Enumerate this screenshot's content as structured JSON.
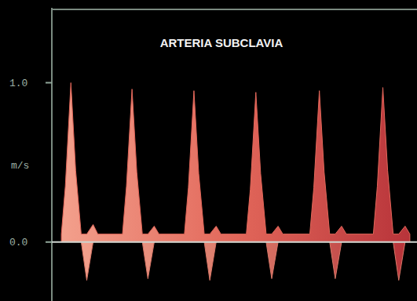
{
  "chart_data": {
    "type": "area",
    "title": "ARTERIA SUBCLAVIA",
    "y_label": "m/s",
    "x": [
      0.12,
      0.17,
      0.24,
      0.3,
      0.37,
      0.44,
      0.52,
      0.58,
      0.89,
      0.94,
      1.01,
      1.07,
      1.14,
      1.21,
      1.29,
      1.35,
      1.67,
      1.72,
      1.79,
      1.85,
      1.92,
      1.99,
      2.07,
      2.13,
      2.45,
      2.5,
      2.57,
      2.63,
      2.7,
      2.77,
      2.85,
      2.91,
      3.25,
      3.3,
      3.37,
      3.43,
      3.5,
      3.57,
      3.65,
      3.71,
      4.05,
      4.1,
      4.17,
      4.23,
      4.3,
      4.37,
      4.45,
      4.51
    ],
    "series": [
      {
        "color": "#e2675a",
        "values": [
          0.05,
          0.35,
          1.0,
          0.45,
          0.05,
          0.05,
          0.11,
          0.05,
          0.05,
          0.35,
          0.96,
          0.44,
          0.05,
          0.05,
          0.1,
          0.05,
          0.05,
          0.34,
          0.95,
          0.43,
          0.05,
          0.05,
          0.1,
          0.05,
          0.05,
          0.33,
          0.94,
          0.43,
          0.05,
          0.05,
          0.1,
          0.05,
          0.05,
          0.34,
          0.95,
          0.44,
          0.05,
          0.05,
          0.1,
          0.05,
          0.05,
          0.35,
          0.97,
          0.45,
          0.05,
          0.05,
          0.1,
          0.05
        ]
      },
      {
        "color": "#d97868",
        "values": [
          null,
          null,
          null,
          null,
          0,
          -0.24,
          0,
          null,
          null,
          null,
          null,
          null,
          0,
          -0.23,
          0,
          null,
          null,
          null,
          null,
          null,
          0,
          -0.24,
          0,
          null,
          null,
          null,
          null,
          null,
          0,
          -0.23,
          0,
          null,
          null,
          null,
          null,
          null,
          0,
          -0.23,
          0,
          null,
          null,
          null,
          null,
          null,
          0,
          -0.24,
          0,
          null
        ]
      }
    ],
    "xlim": [
      0,
      4.6
    ],
    "ylim": [
      -0.37,
      1.47
    ],
    "yticks": [
      {
        "value": 0,
        "label": "0.0"
      },
      {
        "value": 1,
        "label": "1.0"
      }
    ],
    "tick_labels": "y",
    "grid": false
  }
}
